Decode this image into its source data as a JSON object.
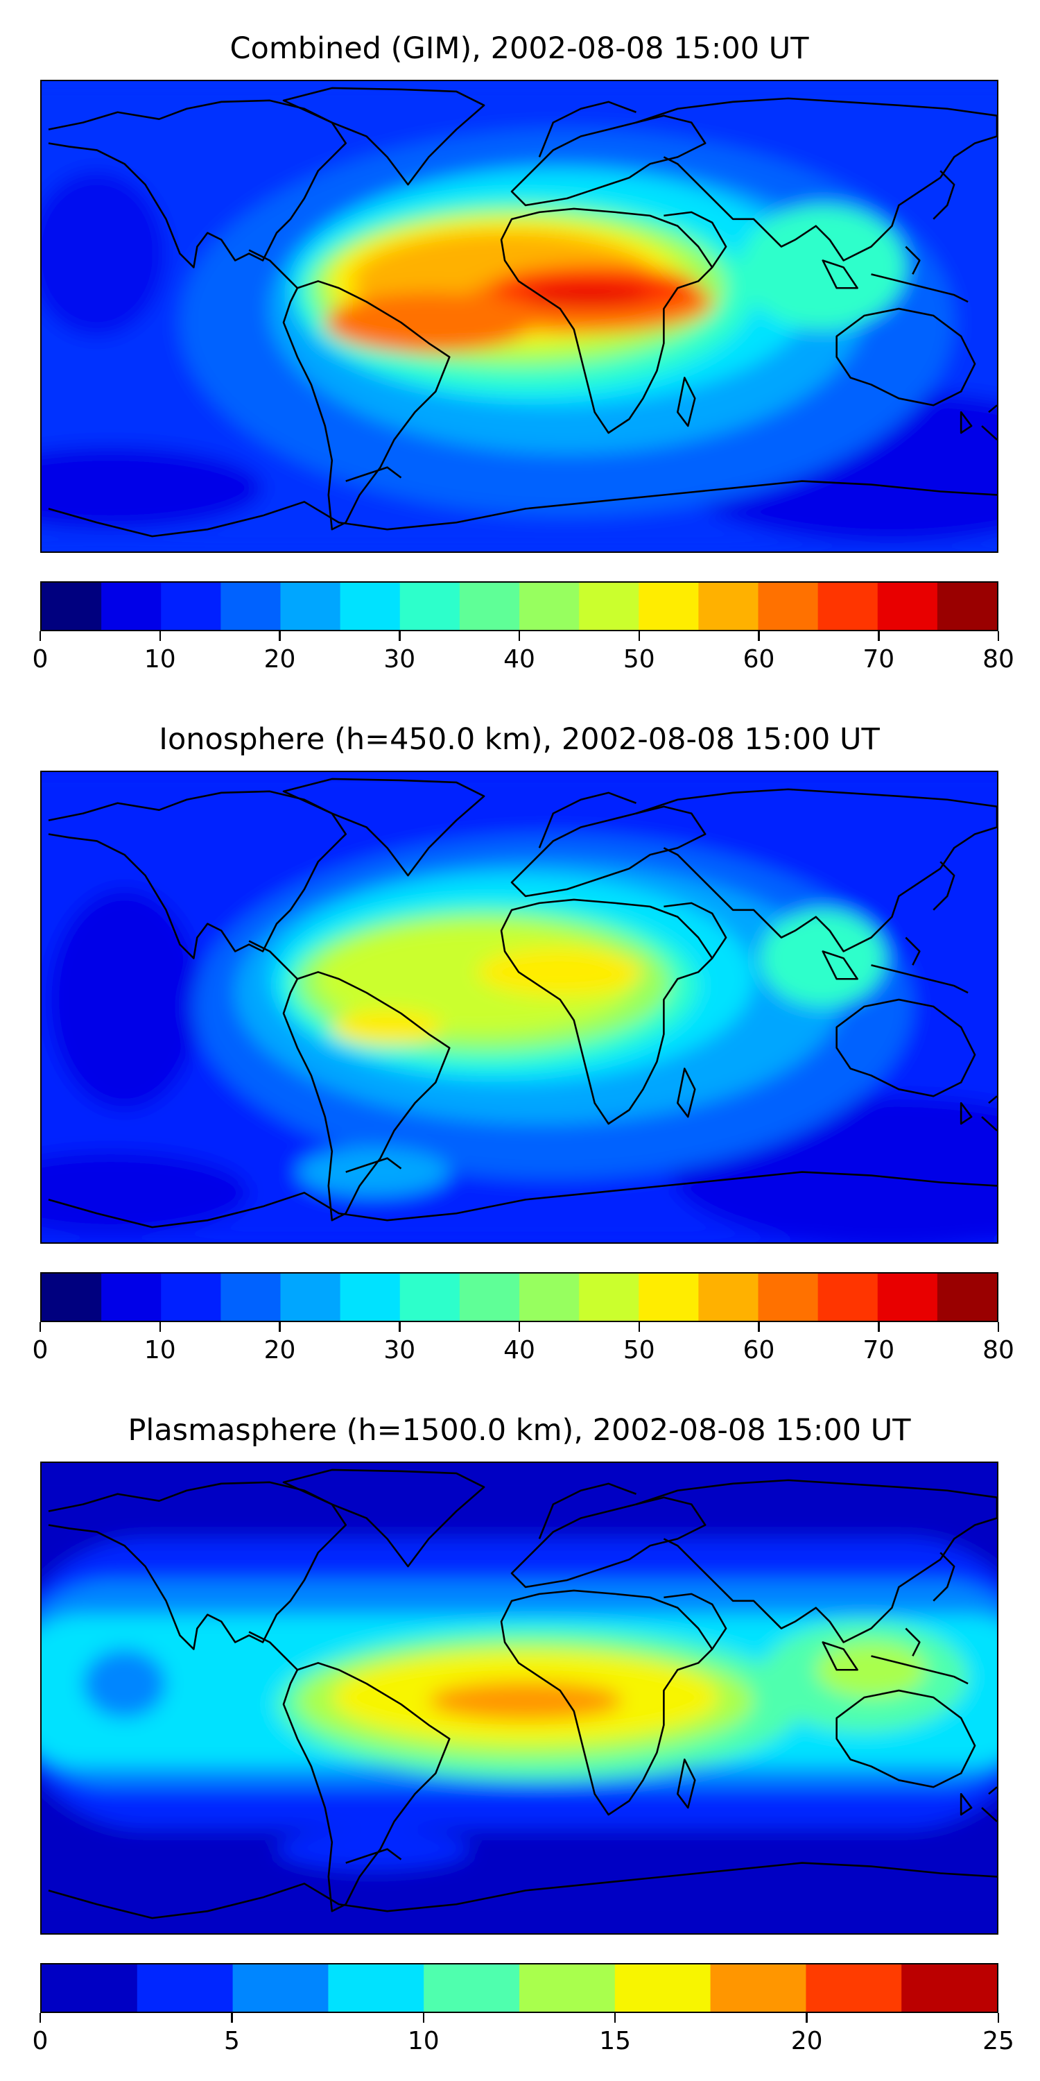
{
  "panels": [
    {
      "title": "Combined (GIM), 2002-08-08 15:00 UT",
      "colorbar": {
        "colors": [
          "#00007f",
          "#0000e8",
          "#0020ff",
          "#0062ff",
          "#00a6ff",
          "#00e2ff",
          "#2dffcb",
          "#5fff97",
          "#97ff5f",
          "#cbff2d",
          "#ffed00",
          "#ffb100",
          "#ff7100",
          "#ff3500",
          "#e80000",
          "#9a0000"
        ],
        "ticks": [
          "0",
          "10",
          "20",
          "30",
          "40",
          "50",
          "60",
          "70",
          "80"
        ]
      }
    },
    {
      "title": "Ionosphere  (h=450.0 km), 2002-08-08 15:00 UT",
      "colorbar": {
        "colors": [
          "#00007f",
          "#0000e8",
          "#0020ff",
          "#0062ff",
          "#00a6ff",
          "#00e2ff",
          "#2dffcb",
          "#5fff97",
          "#97ff5f",
          "#cbff2d",
          "#ffed00",
          "#ffb100",
          "#ff7100",
          "#ff3500",
          "#e80000",
          "#9a0000"
        ],
        "ticks": [
          "0",
          "10",
          "20",
          "30",
          "40",
          "50",
          "60",
          "70",
          "80"
        ]
      }
    },
    {
      "title": "Plasmasphere (h=1500.0 km), 2002-08-08 15:00 UT",
      "colorbar": {
        "colors": [
          "#0000c4",
          "#0026ff",
          "#0086ff",
          "#00e2ff",
          "#4fffae",
          "#a9ff4d",
          "#f8f500",
          "#ff9600",
          "#ff3c00",
          "#bb0000"
        ],
        "ticks": [
          "0",
          "5",
          "10",
          "15",
          "20",
          "25"
        ]
      }
    }
  ]
}
